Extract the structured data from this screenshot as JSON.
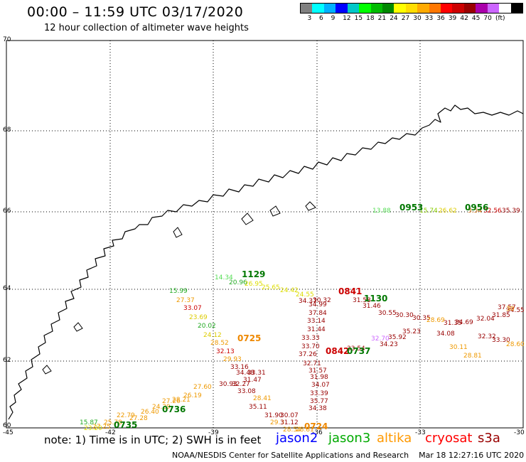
{
  "title": "00:00 – 11:59 UTC 03/17/2020",
  "subtitle": "12 hour collection of altimeter wave heights",
  "colorbar": {
    "colors": [
      "#808080",
      "#00ffff",
      "#00b0ff",
      "#0000ff",
      "#00c8c8",
      "#00ff00",
      "#00bb00",
      "#008800",
      "#ffff00",
      "#ffdd00",
      "#ffaa00",
      "#ff7700",
      "#ff0000",
      "#cc0000",
      "#990000",
      "#aa00aa",
      "#cc66ff",
      "#ffffff",
      "#000000"
    ],
    "labels": [
      "3",
      "6",
      "9",
      "12",
      "15",
      "18",
      "21",
      "24",
      "27",
      "30",
      "33",
      "36",
      "39",
      "42",
      "45",
      "70",
      "(ft)"
    ]
  },
  "axes": {
    "y_labels": [
      "70",
      "68",
      "66",
      "64",
      "62",
      "60"
    ],
    "x_labels": [
      "-45",
      "-42",
      "-39",
      "-36",
      "-33",
      "-30"
    ]
  },
  "measurements": [
    {
      "t": "13.88",
      "c": "#55dd55"
    },
    {
      "t": "15.74",
      "c": "#88cc00"
    },
    {
      "t": "26.62",
      "c": "#ddcc00"
    },
    {
      "t": "3.54",
      "c": "#cc6600"
    },
    {
      "t": "32.56",
      "c": "#cc0000"
    },
    {
      "t": "35.39",
      "c": "#990000"
    },
    {
      "t": "14.34",
      "c": "#55dd55"
    },
    {
      "t": "20.96",
      "c": "#22aa22"
    },
    {
      "t": "26.95",
      "c": "#dddd00"
    },
    {
      "t": "25.65",
      "c": "#dddd00"
    },
    {
      "t": "24.42",
      "c": "#dddd00"
    },
    {
      "t": "24.55",
      "c": "#dddd00"
    },
    {
      "t": "15.99",
      "c": "#22aa22"
    },
    {
      "t": "27.37",
      "c": "#ee9900"
    },
    {
      "t": "33.07",
      "c": "#cc0000"
    },
    {
      "t": "23.69",
      "c": "#ddcc00"
    },
    {
      "t": "20.02",
      "c": "#22aa22"
    },
    {
      "t": "24.12",
      "c": "#ddcc00"
    },
    {
      "t": "28.52",
      "c": "#ee9900"
    },
    {
      "t": "32.13",
      "c": "#cc0000"
    },
    {
      "t": "29.93",
      "c": "#ee9900"
    },
    {
      "t": "33.16",
      "c": "#990000"
    },
    {
      "t": "34.48",
      "c": "#990000"
    },
    {
      "t": "33.31",
      "c": "#990000"
    },
    {
      "t": "31.47",
      "c": "#990000"
    },
    {
      "t": "30.93",
      "c": "#990000"
    },
    {
      "t": "32.27",
      "c": "#990000"
    },
    {
      "t": "33.08",
      "c": "#990000"
    },
    {
      "t": "28.41",
      "c": "#ee9900"
    },
    {
      "t": "35.11",
      "c": "#990000"
    },
    {
      "t": "31.90",
      "c": "#990000"
    },
    {
      "t": "30.07",
      "c": "#990000"
    },
    {
      "t": "29.3",
      "c": "#ee9900"
    },
    {
      "t": "31.12",
      "c": "#990000"
    },
    {
      "t": "28.54",
      "c": "#ee9900"
    },
    {
      "t": "28.81",
      "c": "#ee9900"
    },
    {
      "t": "34.37",
      "c": "#990000"
    },
    {
      "t": "34.99",
      "c": "#990000"
    },
    {
      "t": "37.84",
      "c": "#990000"
    },
    {
      "t": "33.14",
      "c": "#990000"
    },
    {
      "t": "31.44",
      "c": "#990000"
    },
    {
      "t": "33.33",
      "c": "#990000"
    },
    {
      "t": "33.70",
      "c": "#990000"
    },
    {
      "t": "37.26",
      "c": "#990000"
    },
    {
      "t": "32.71",
      "c": "#990000"
    },
    {
      "t": "31.57",
      "c": "#990000"
    },
    {
      "t": "31.98",
      "c": "#990000"
    },
    {
      "t": "34.07",
      "c": "#990000"
    },
    {
      "t": "33.39",
      "c": "#990000"
    },
    {
      "t": "35.77",
      "c": "#990000"
    },
    {
      "t": "34.38",
      "c": "#990000"
    },
    {
      "t": "30.32",
      "c": "#990000"
    },
    {
      "t": "31.58",
      "c": "#990000"
    },
    {
      "t": "31.46",
      "c": "#990000"
    },
    {
      "t": "30.55",
      "c": "#990000"
    },
    {
      "t": "30.30",
      "c": "#990000"
    },
    {
      "t": "30.35",
      "c": "#990000"
    },
    {
      "t": "28.69",
      "c": "#ee9900"
    },
    {
      "t": "35.23",
      "c": "#990000"
    },
    {
      "t": "34.08",
      "c": "#990000"
    },
    {
      "t": "31.35",
      "c": "#990000"
    },
    {
      "t": "34.69",
      "c": "#990000"
    },
    {
      "t": "35.92",
      "c": "#990000"
    },
    {
      "t": "32.04",
      "c": "#990000"
    },
    {
      "t": "31.85",
      "c": "#990000"
    },
    {
      "t": "34.55",
      "c": "#990000"
    },
    {
      "t": "37.57",
      "c": "#990000"
    },
    {
      "t": "30.11",
      "c": "#ee9900"
    },
    {
      "t": "28.81",
      "c": "#ee9900"
    },
    {
      "t": "32.32",
      "c": "#990000"
    },
    {
      "t": "33.30",
      "c": "#990000"
    },
    {
      "t": "28.60",
      "c": "#ee9900"
    },
    {
      "t": "30",
      "c": "#ee9900"
    },
    {
      "t": "34.23",
      "c": "#990000"
    },
    {
      "t": "33.54",
      "c": "#990000"
    },
    {
      "t": "32.70",
      "c": "#cc66ff"
    },
    {
      "t": "27.60",
      "c": "#ee9900"
    },
    {
      "t": "26.19",
      "c": "#ee9900"
    },
    {
      "t": "28.21",
      "c": "#ee9900"
    },
    {
      "t": "27.26",
      "c": "#ee9900"
    },
    {
      "t": "24.29",
      "c": "#ee9900"
    },
    {
      "t": "26.40",
      "c": "#ee9900"
    },
    {
      "t": "27.28",
      "c": "#ee9900"
    },
    {
      "t": "22.79",
      "c": "#ee9900"
    },
    {
      "t": "25.78",
      "c": "#ee9900"
    },
    {
      "t": "27.25",
      "c": "#ee9900"
    },
    {
      "t": "15.87",
      "c": "#22aa22"
    },
    {
      "t": "23.20",
      "c": "#dddd00"
    }
  ],
  "track_times": [
    {
      "t": "0953",
      "c": "#007700"
    },
    {
      "t": "0956",
      "c": "#007700"
    },
    {
      "t": "1129",
      "c": "#007700"
    },
    {
      "t": "0841",
      "c": "#cc0000"
    },
    {
      "t": "1130",
      "c": "#007700"
    },
    {
      "t": "0725",
      "c": "#ee8800"
    },
    {
      "t": "0842",
      "c": "#cc0000"
    },
    {
      "t": "0737",
      "c": "#007700"
    },
    {
      "t": "0736",
      "c": "#007700"
    },
    {
      "t": "0735",
      "c": "#007700"
    },
    {
      "t": "0724",
      "c": "#ee8800"
    }
  ],
  "note": "note:  1) Time is in UTC;  2) SWH is in feet",
  "legend": [
    {
      "label": "jason2",
      "color": "#0000ff"
    },
    {
      "label": "jason3",
      "color": "#00aa00"
    },
    {
      "label": "altika",
      "color": "#ff9900"
    },
    {
      "label": "cryosat",
      "color": "#ff0000"
    },
    {
      "label": "s3a",
      "color": "#990000"
    }
  ],
  "credit": "NOAA/NESDIS Center for Satellite Applications and Research",
  "timestamp": "Mar 18 12:27:16 UTC 2020"
}
